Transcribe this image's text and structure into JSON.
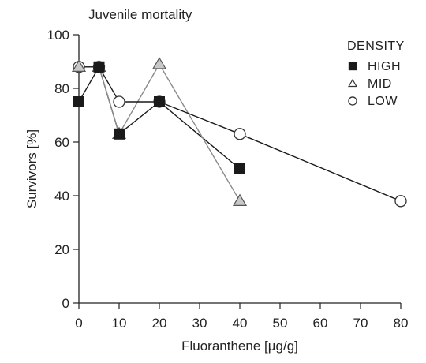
{
  "chart_data": {
    "type": "line",
    "title": "Juvenile mortality",
    "xlabel": "Fluoranthene [µg/g]",
    "ylabel": "Survivors [%]",
    "xlim": [
      0,
      80
    ],
    "ylim": [
      0,
      100
    ],
    "xticks": [
      0,
      10,
      20,
      30,
      40,
      50,
      60,
      70,
      80
    ],
    "yticks": [
      0,
      20,
      40,
      60,
      80,
      100
    ],
    "grid": false,
    "legend": {
      "title": "DENSITY",
      "placement": "top-right"
    },
    "series": [
      {
        "name": "HIGH",
        "marker": "filled-square",
        "color": "#1a1a1a",
        "x": [
          0,
          5,
          10,
          20,
          40
        ],
        "y": [
          75,
          88,
          63,
          75,
          50
        ]
      },
      {
        "name": "MID",
        "marker": "triangle",
        "color": "#1a1a1a",
        "x": [
          0,
          5,
          10,
          20,
          40
        ],
        "y": [
          88,
          88,
          63,
          89,
          38
        ]
      },
      {
        "name": "LOW",
        "marker": "open-circle",
        "color": "#1a1a1a",
        "x": [
          0,
          5,
          10,
          20,
          40,
          80
        ],
        "y": [
          88,
          88,
          75,
          75,
          63,
          38
        ]
      }
    ]
  }
}
